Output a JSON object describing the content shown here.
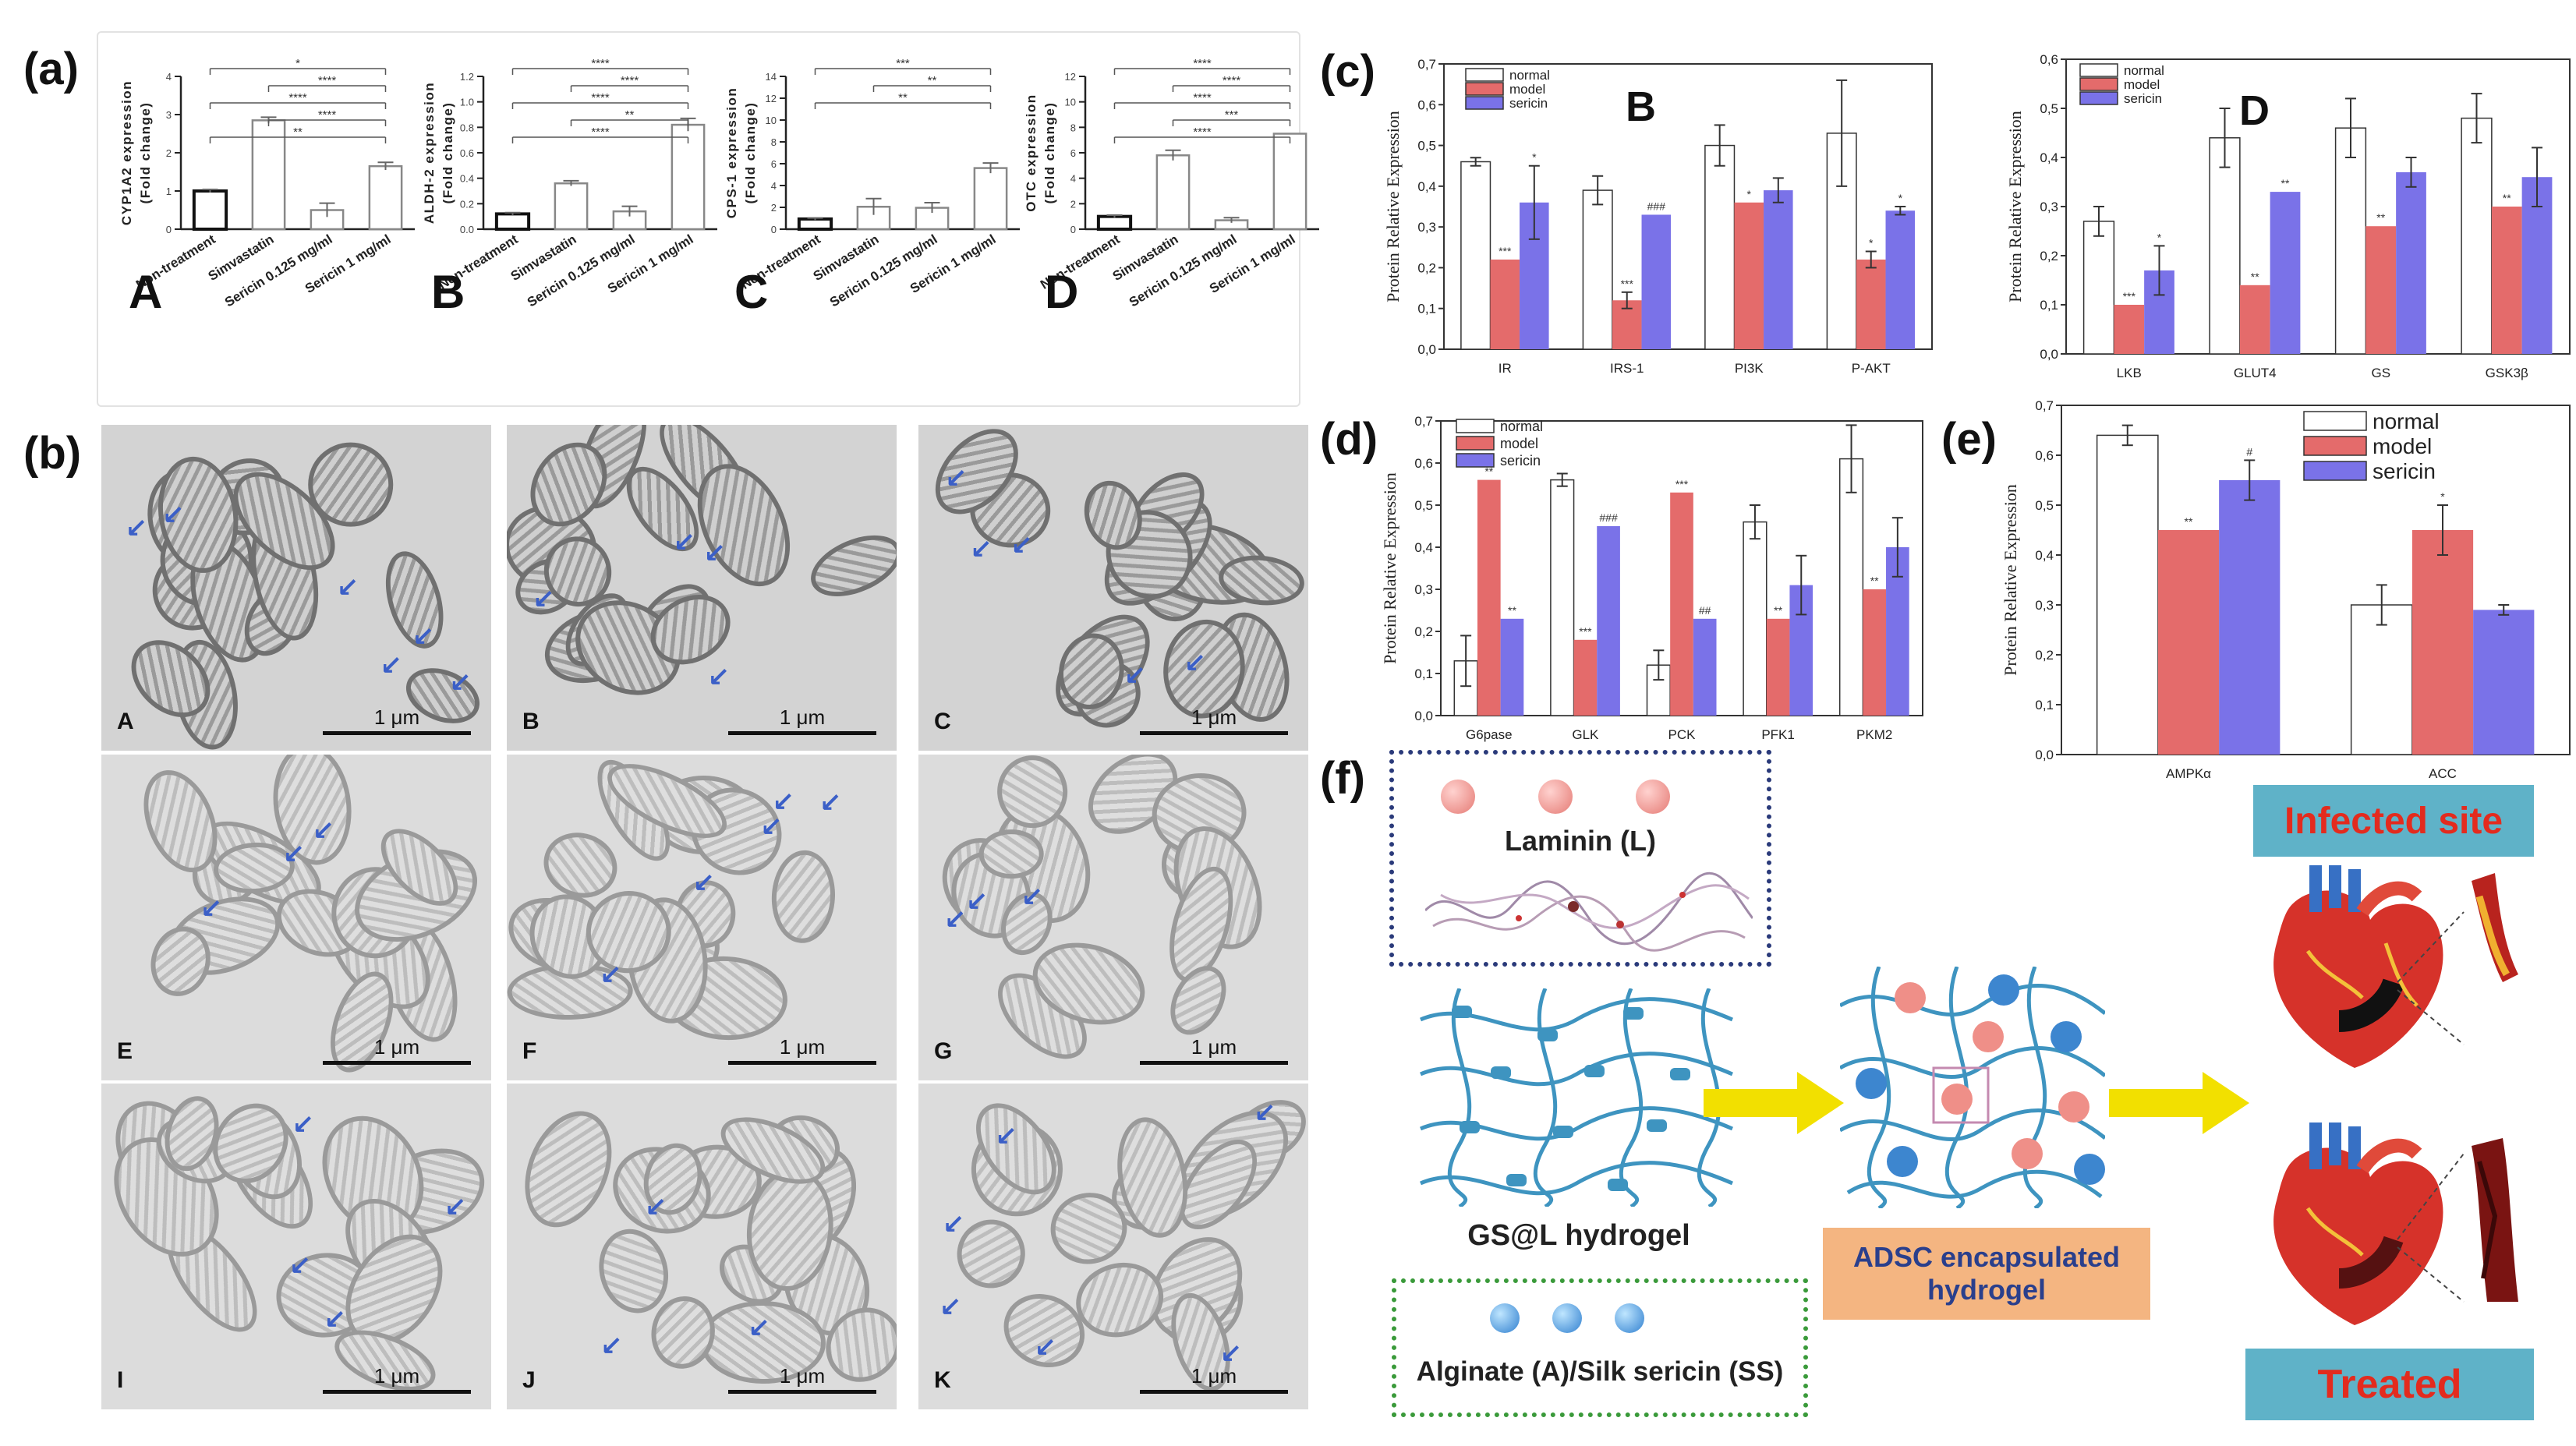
{
  "panel_letters": [
    "(a)",
    "(b)",
    "(c)",
    "(d)",
    "(e)",
    "(f)"
  ],
  "colors": {
    "normal": "#ffffff",
    "model": "#e46b6b",
    "sericin": "#7a72e8",
    "arrow": "#3b5fc7",
    "stroke": "#222222"
  },
  "chart_data": [
    {
      "id": "a-A",
      "type": "bar",
      "panel_label": "A",
      "ylabel": "CYP1A2 expression\n(Fold change)",
      "categories": [
        "Non-treatment",
        "Simvastatin",
        "Sericin 0.125 mg/ml",
        "Sericin 1 mg/ml"
      ],
      "values": [
        1.0,
        2.85,
        0.5,
        1.65
      ],
      "errors": [
        0.04,
        0.08,
        0.18,
        0.1
      ],
      "ylim": [
        0,
        4
      ],
      "yticks": [
        "0",
        "1",
        "2",
        "3",
        "4"
      ],
      "significance": [
        "*",
        "****",
        "****",
        "****",
        "**"
      ]
    },
    {
      "id": "a-B",
      "type": "bar",
      "panel_label": "B",
      "ylabel": "ALDH-2 expression\n(Fold change)",
      "categories": [
        "Non-treatment",
        "Simvastatin",
        "Sericin 0.125 mg/ml",
        "Sericin 1 mg/ml"
      ],
      "values": [
        0.12,
        0.36,
        0.14,
        0.82
      ],
      "errors": [
        0.01,
        0.02,
        0.04,
        0.05
      ],
      "ylim": [
        0,
        1.2
      ],
      "yticks": [
        "0.0",
        "0.2",
        "0.4",
        "0.6",
        "0.8",
        "1.0",
        "1.2"
      ],
      "significance": [
        "****",
        "****",
        "****",
        "**",
        "****"
      ]
    },
    {
      "id": "a-C",
      "type": "bar",
      "panel_label": "C",
      "ylabel": "CPS-1 expression\n(Fold change)",
      "categories": [
        "Non-treatment",
        "Simvastatin",
        "Sericin 0.125 mg/ml",
        "Sericin 1 mg/ml"
      ],
      "values": [
        1.0,
        2.2,
        2.1,
        6.0
      ],
      "errors": [
        0.1,
        0.8,
        0.5,
        0.5
      ],
      "ylim": [
        0,
        15
      ],
      "yticks": [
        "0",
        "2",
        "4",
        "6",
        "8",
        "10",
        "12",
        "14"
      ],
      "significance": [
        "***",
        "**",
        "**"
      ]
    },
    {
      "id": "a-D",
      "type": "bar",
      "panel_label": "D",
      "ylabel": "OTC expression\n(Fold change)",
      "categories": [
        "Non-treatment",
        "Simvastatin",
        "Sericin 0.125 mg/ml",
        "Sericin 1 mg/ml"
      ],
      "values": [
        1.0,
        5.8,
        0.7,
        7.5
      ],
      "errors": [
        0.1,
        0.4,
        0.2,
        0.0
      ],
      "ylim": [
        0,
        12
      ],
      "yticks": [
        "0",
        "2",
        "4",
        "6",
        "8",
        "10",
        "12"
      ],
      "significance": [
        "****",
        "****",
        "****",
        "***",
        "****"
      ]
    },
    {
      "id": "c-B",
      "type": "bar",
      "panel_label": "B",
      "ylabel": "Protein Relative Expression",
      "categories": [
        "IR",
        "IRS-1",
        "PI3K",
        "P-AKT"
      ],
      "series": [
        {
          "name": "normal",
          "values": [
            0.46,
            0.39,
            0.5,
            0.53
          ],
          "errors": [
            0.01,
            0.035,
            0.05,
            0.13
          ]
        },
        {
          "name": "model",
          "values": [
            0.22,
            0.12,
            0.36,
            0.22
          ],
          "errors": [
            0.0,
            0.02,
            0.0,
            0.02
          ]
        },
        {
          "name": "sericin",
          "values": [
            0.36,
            0.33,
            0.39,
            0.34
          ],
          "errors": [
            0.09,
            0.0,
            0.03,
            0.01
          ]
        }
      ],
      "marks": [
        [
          "",
          "***",
          "*"
        ],
        [
          "",
          "***",
          "###"
        ],
        [
          "",
          "*",
          ""
        ],
        [
          "",
          "*",
          "*"
        ]
      ],
      "ylim": [
        0,
        0.7
      ],
      "yticks": [
        "0,0",
        "0,1",
        "0,2",
        "0,3",
        "0,4",
        "0,5",
        "0,6",
        "0,7"
      ],
      "legend_position": "top-left"
    },
    {
      "id": "c-D",
      "type": "bar",
      "panel_label": "D",
      "ylabel": "Protein Relative Expression",
      "categories": [
        "LKB",
        "GLUT4",
        "GS",
        "GSK3β"
      ],
      "series": [
        {
          "name": "normal",
          "values": [
            0.27,
            0.44,
            0.46,
            0.48
          ],
          "errors": [
            0.03,
            0.06,
            0.06,
            0.05
          ]
        },
        {
          "name": "model",
          "values": [
            0.1,
            0.14,
            0.26,
            0.3
          ],
          "errors": [
            0.0,
            0.0,
            0.0,
            0.0
          ]
        },
        {
          "name": "sericin",
          "values": [
            0.17,
            0.33,
            0.37,
            0.36
          ],
          "errors": [
            0.05,
            0.0,
            0.03,
            0.06
          ]
        }
      ],
      "marks": [
        [
          "",
          "***",
          "*"
        ],
        [
          "",
          "**",
          "**"
        ],
        [
          "",
          "**",
          ""
        ],
        [
          "",
          "**",
          ""
        ]
      ],
      "ylim": [
        0,
        0.6
      ],
      "yticks": [
        "0,0",
        "0,1",
        "0,2",
        "0,3",
        "0,4",
        "0,5",
        "0,6"
      ],
      "legend_position": "top-left"
    },
    {
      "id": "d",
      "type": "bar",
      "ylabel": "Protein Relative Expression",
      "categories": [
        "G6pase",
        "GLK",
        "PCK",
        "PFK1",
        "PKM2"
      ],
      "series": [
        {
          "name": "normal",
          "values": [
            0.13,
            0.56,
            0.12,
            0.46,
            0.61
          ],
          "errors": [
            0.06,
            0.015,
            0.035,
            0.04,
            0.08
          ]
        },
        {
          "name": "model",
          "values": [
            0.56,
            0.18,
            0.53,
            0.23,
            0.3
          ],
          "errors": [
            0.0,
            0.0,
            0.0,
            0.0,
            0.0
          ]
        },
        {
          "name": "sericin",
          "values": [
            0.23,
            0.45,
            0.23,
            0.31,
            0.4
          ],
          "errors": [
            0.0,
            0.0,
            0.0,
            0.07,
            0.07
          ]
        }
      ],
      "marks": [
        [
          "",
          "**",
          "**"
        ],
        [
          "",
          "***",
          "###"
        ],
        [
          "",
          "***",
          "##"
        ],
        [
          "",
          "**",
          ""
        ],
        [
          "",
          "**",
          ""
        ]
      ],
      "ylim": [
        0,
        0.7
      ],
      "yticks": [
        "0,0",
        "0,1",
        "0,2",
        "0,3",
        "0,4",
        "0,5",
        "0,6",
        "0,7"
      ],
      "legend_position": "top-left"
    },
    {
      "id": "e",
      "type": "bar",
      "ylabel": "Protein Relative Expression",
      "categories": [
        "AMPKα",
        "ACC"
      ],
      "series": [
        {
          "name": "normal",
          "values": [
            0.64,
            0.3
          ],
          "errors": [
            0.02,
            0.04
          ]
        },
        {
          "name": "model",
          "values": [
            0.45,
            0.45
          ],
          "errors": [
            0.0,
            0.05
          ]
        },
        {
          "name": "sericin",
          "values": [
            0.55,
            0.29
          ],
          "errors": [
            0.04,
            0.01
          ]
        }
      ],
      "marks": [
        [
          "",
          "**",
          "#"
        ],
        [
          "",
          "*",
          ""
        ]
      ],
      "ylim": [
        0,
        0.7
      ],
      "yticks": [
        "0,0",
        "0,1",
        "0,2",
        "0,3",
        "0,4",
        "0,5",
        "0,6",
        "0,7"
      ],
      "legend_position": "top-right"
    }
  ],
  "micrographs": {
    "labels": [
      "A",
      "B",
      "C",
      "E",
      "F",
      "G",
      "I",
      "J",
      "K"
    ],
    "scale_label": "1 μm"
  },
  "schematic": {
    "laminin": "Laminin (L)",
    "gs_hydrogel": "GS@L hydrogel",
    "alginate": "Alginate (A)/Silk sericin (SS)",
    "adsc": "ADSC encapsulated\nhydrogel",
    "infected": "Infected site",
    "treated": "Treated"
  }
}
